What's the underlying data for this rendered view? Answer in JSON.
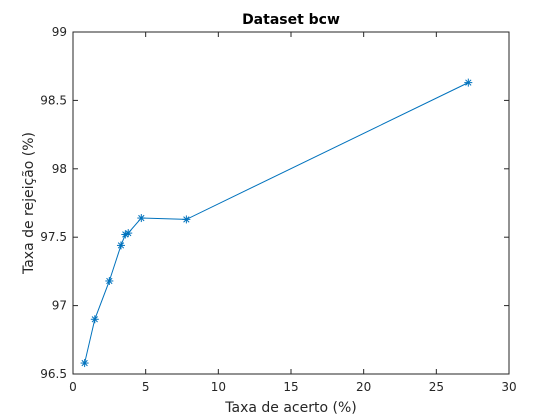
{
  "chart_data": {
    "type": "line",
    "title": "Dataset bcw",
    "xlabel": "Taxa de acerto (%)",
    "ylabel": "Taxa de rejeição (%)",
    "xlim": [
      0,
      30
    ],
    "ylim": [
      96.5,
      99
    ],
    "xticks": [
      "0",
      "5",
      "10",
      "15",
      "20",
      "25",
      "30"
    ],
    "yticks": [
      "96.5",
      "97",
      "97.5",
      "98",
      "98.5",
      "99"
    ],
    "grid": false,
    "marker": "asterisk",
    "line_color": "#0072bd",
    "series": [
      {
        "x": [
          0.8,
          1.5,
          2.5,
          3.3,
          3.6,
          3.8,
          4.7,
          7.8,
          27.2
        ],
        "y": [
          96.58,
          96.9,
          97.18,
          97.44,
          97.52,
          97.53,
          97.64,
          97.63,
          98.63
        ]
      }
    ]
  }
}
